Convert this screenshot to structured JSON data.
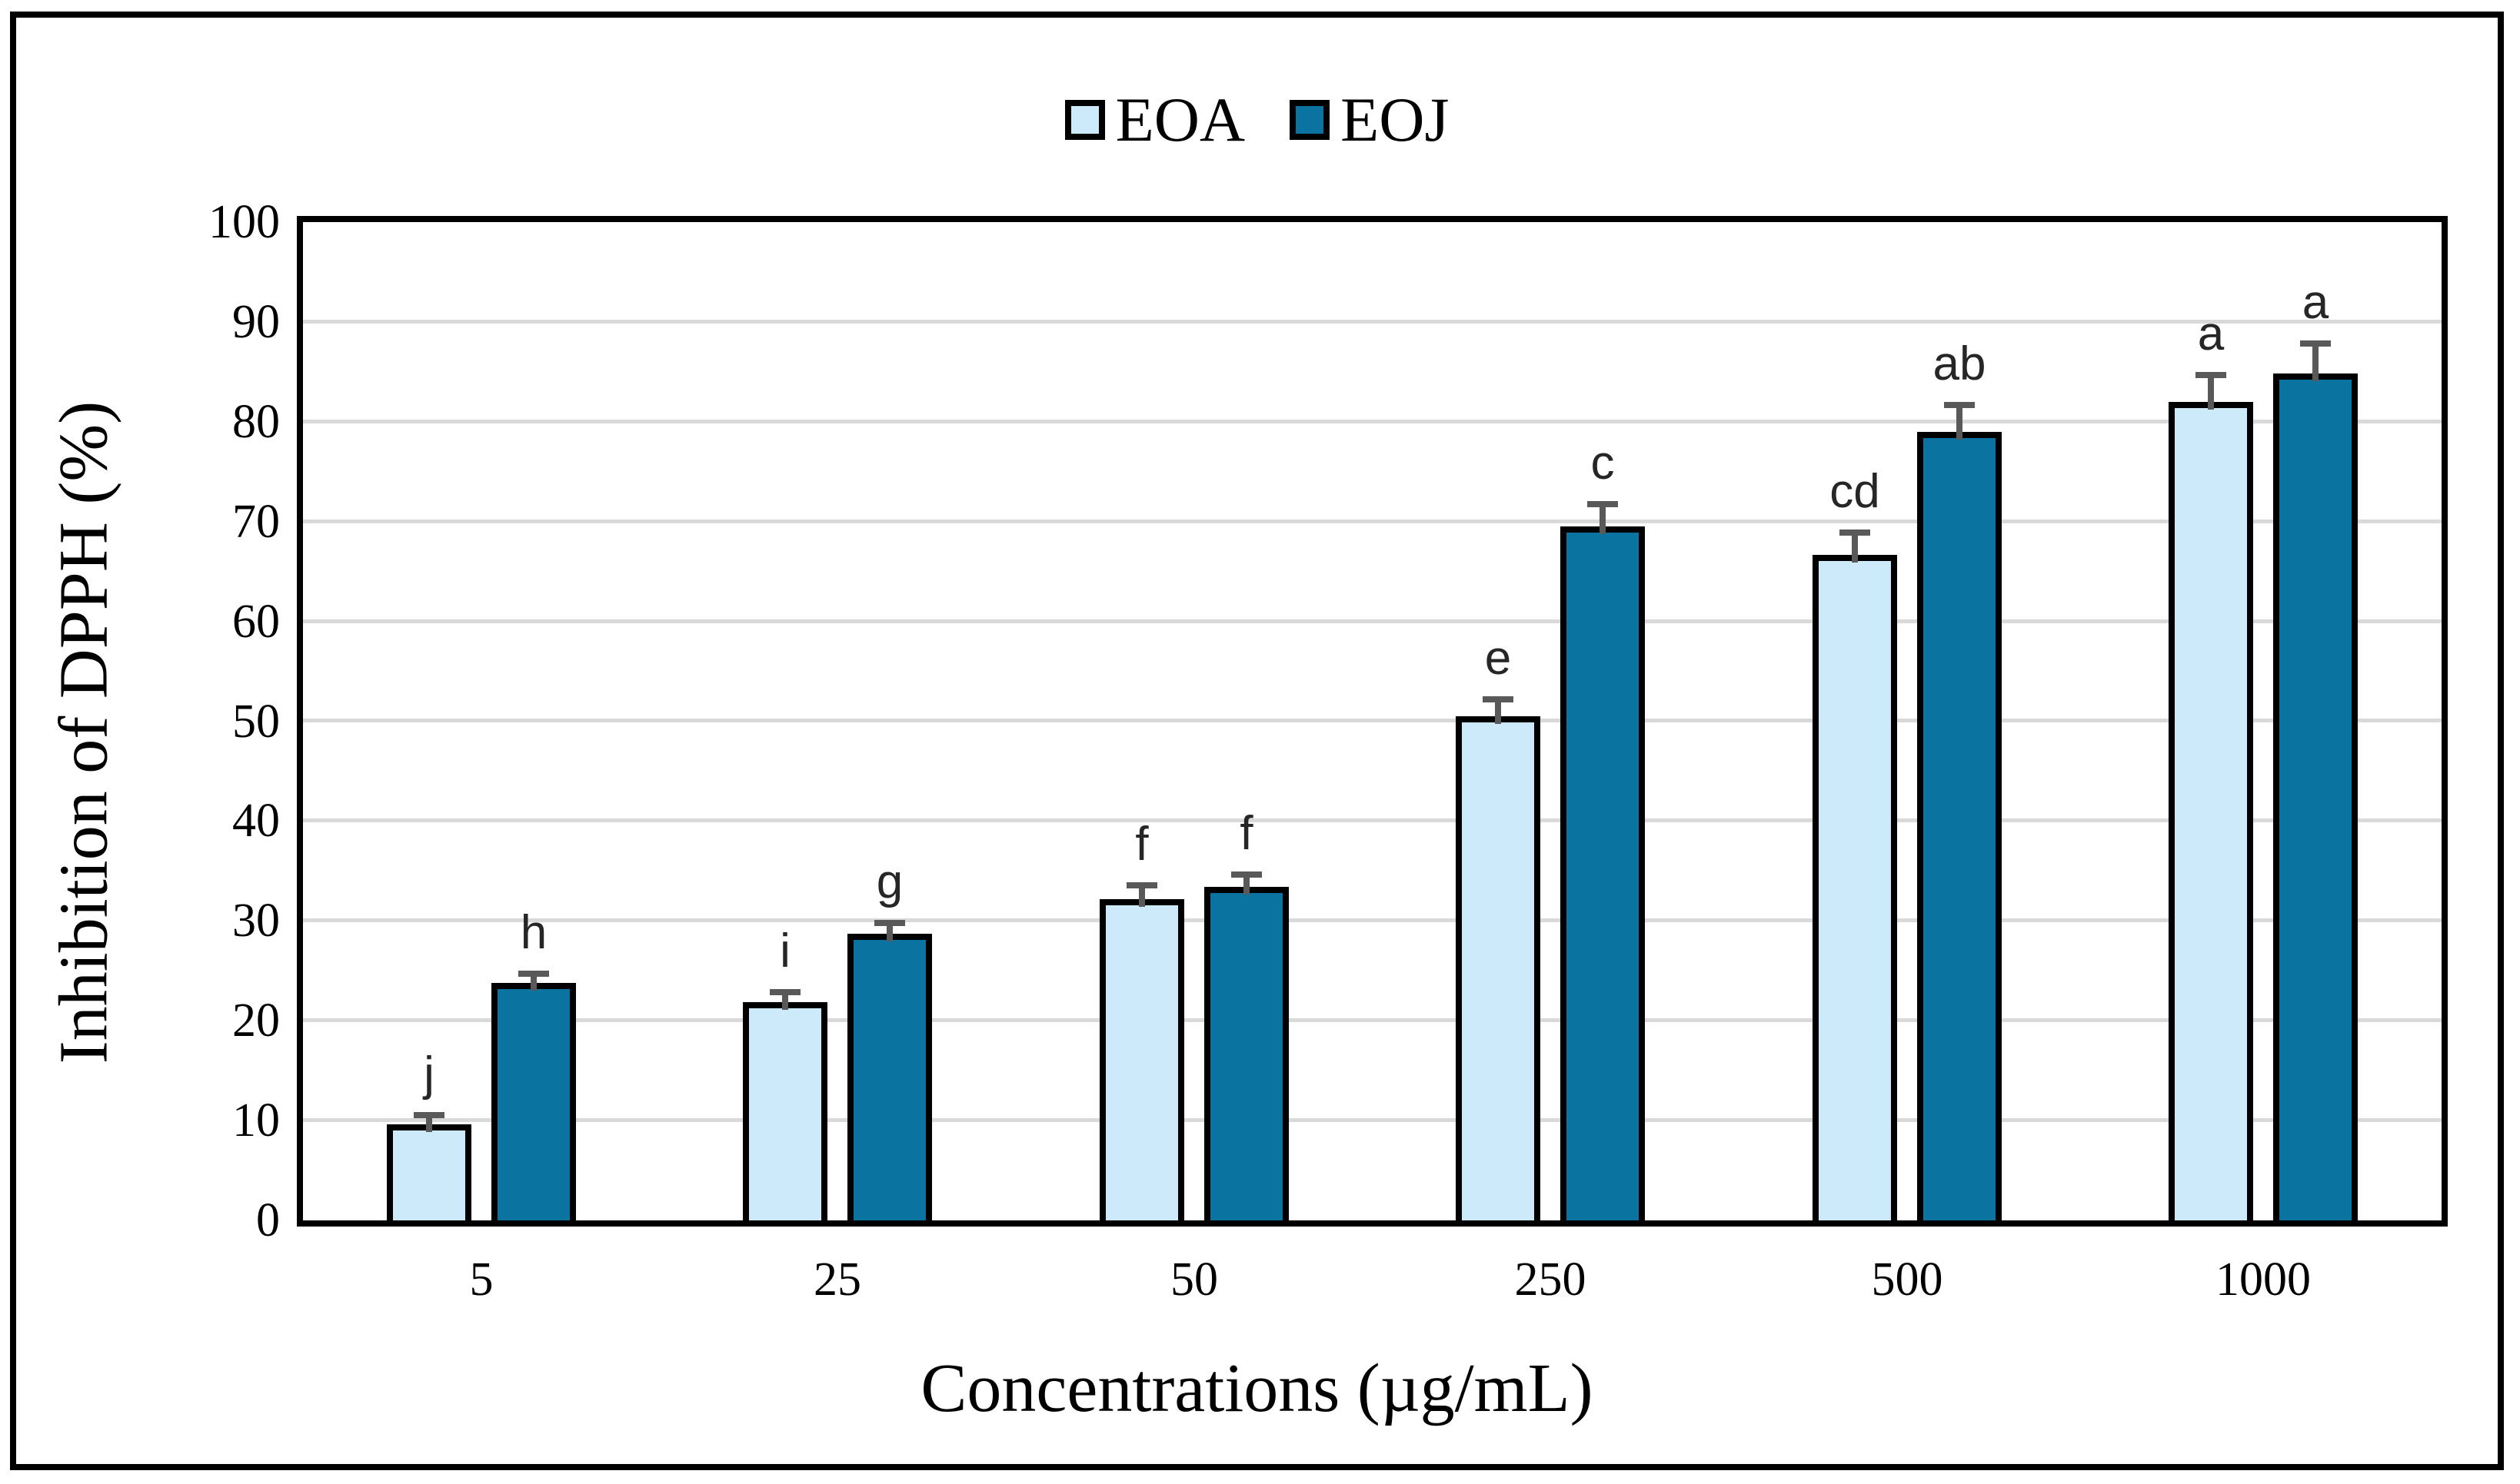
{
  "figure": {
    "background": "#ffffff",
    "border_color": "#000000"
  },
  "legend": {
    "position": "top-center",
    "items": [
      {
        "label": "EOA",
        "color": "#cdeafb"
      },
      {
        "label": "EOJ",
        "color": "#0b73a0"
      }
    ]
  },
  "chart_data": {
    "type": "bar",
    "title": "",
    "xlabel": "Concentrations (µg/mL)",
    "ylabel": "Inhibition of DPPH (%)",
    "ylim": [
      0,
      100
    ],
    "ytick_labels": [
      "0",
      "10",
      "20",
      "30",
      "40",
      "50",
      "60",
      "70",
      "80",
      "90",
      "100"
    ],
    "grid": {
      "horizontal": true,
      "color": "#d9d9d9"
    },
    "legend_position": "top-center",
    "categories": [
      "5",
      "25",
      "50",
      "250",
      "500",
      "1000"
    ],
    "series": [
      {
        "name": "EOA",
        "fill": "#cdeafb",
        "values": [
          9.6,
          21.9,
          32.2,
          50.5,
          66.7,
          82.0
        ],
        "errors": [
          0.6,
          0.7,
          1.1,
          1.4,
          1.9,
          2.4
        ],
        "sig_letters": [
          "j",
          "i",
          "f",
          "e",
          "cd",
          "a"
        ]
      },
      {
        "name": "EOJ",
        "fill": "#0b73a0",
        "values": [
          23.8,
          28.7,
          33.4,
          69.5,
          79.0,
          84.8
        ],
        "errors": [
          0.6,
          0.8,
          0.9,
          1.9,
          2.4,
          2.7
        ],
        "sig_letters": [
          "h",
          "g",
          "f",
          "c",
          "ab",
          "a"
        ]
      }
    ],
    "bar_border_color": "#000000",
    "error_bar_color": "#595959"
  }
}
